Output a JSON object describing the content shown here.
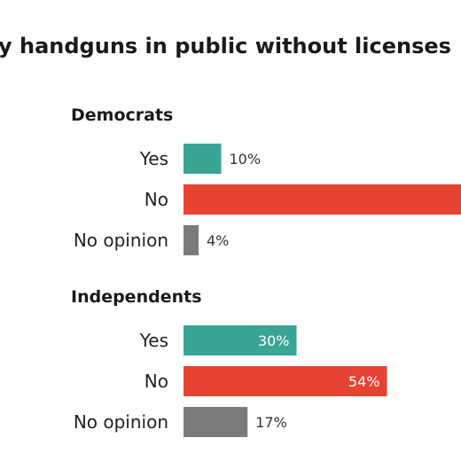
{
  "title": "y handguns in public without licenses",
  "colors": {
    "Yes": "#3aa495",
    "No": "#e64332",
    "No opinion": "#7b7b7b"
  },
  "chart_data": {
    "type": "bar",
    "orientation": "horizontal",
    "title": "y handguns in public without licenses",
    "categories": [
      "Yes",
      "No",
      "No opinion"
    ],
    "groups": [
      {
        "name": "Democrats",
        "values": [
          10,
          null,
          4
        ],
        "labels": [
          "10%",
          "",
          "4%"
        ]
      },
      {
        "name": "Independents",
        "values": [
          30,
          54,
          17
        ],
        "labels": [
          "30%",
          "54%",
          "17%"
        ]
      }
    ],
    "xlim": [
      0,
      100
    ],
    "grid": false,
    "legend": "none"
  }
}
